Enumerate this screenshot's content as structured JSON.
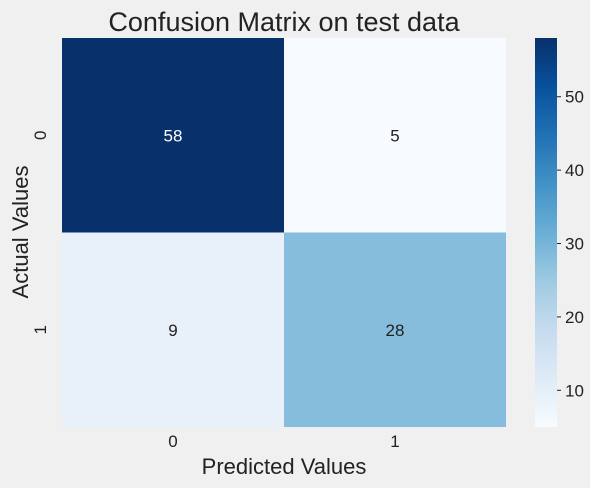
{
  "chart_data": {
    "type": "heatmap",
    "title": "Confusion Matrix on test data",
    "xlabel": "Predicted Values",
    "ylabel": "Actual Values",
    "x_categories": [
      "0",
      "1"
    ],
    "y_categories": [
      "0",
      "1"
    ],
    "values": [
      [
        58,
        5
      ],
      [
        9,
        28
      ]
    ],
    "colormap": "Blues",
    "colorbar": {
      "min": 5,
      "max": 58,
      "ticks": [
        10,
        20,
        30,
        40,
        50
      ]
    },
    "colors": {
      "background": "#f0f0f0",
      "text_dark": "#222222",
      "text_light": "#ffffff"
    }
  }
}
